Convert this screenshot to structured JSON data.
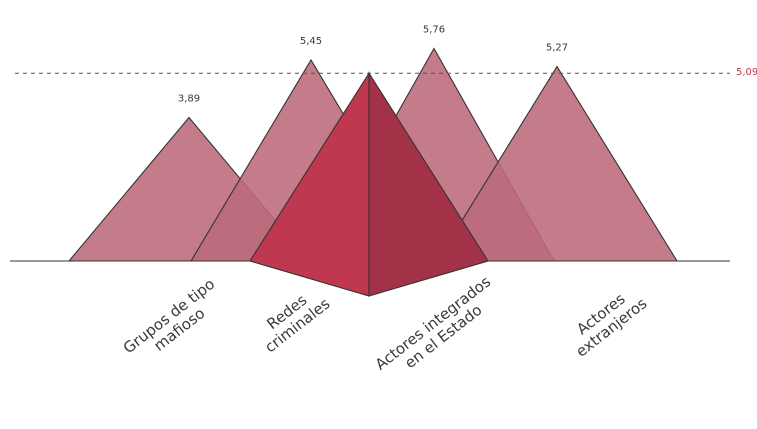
{
  "chart_data": {
    "type": "pyramid",
    "categories": [
      [
        "Grupos de tipo",
        "mafioso"
      ],
      [
        "Redes",
        "criminales"
      ],
      [
        "Actores integrados",
        "en el Estado"
      ],
      [
        "Actores",
        "extranjeros"
      ]
    ],
    "values": [
      3.89,
      5.45,
      5.76,
      5.27
    ],
    "value_labels": [
      "3,89",
      "5,45",
      "5,76",
      "5,27"
    ],
    "average": {
      "value": 5.09,
      "label": "5,09"
    },
    "title": "",
    "xlabel": "",
    "ylabel": "",
    "colors": {
      "series": "#bc6a7b",
      "average_left": "#bf3850",
      "average_right": "#a33248",
      "average_line": "#555555",
      "average_text": "#c0394e",
      "outline": "#333333"
    }
  }
}
